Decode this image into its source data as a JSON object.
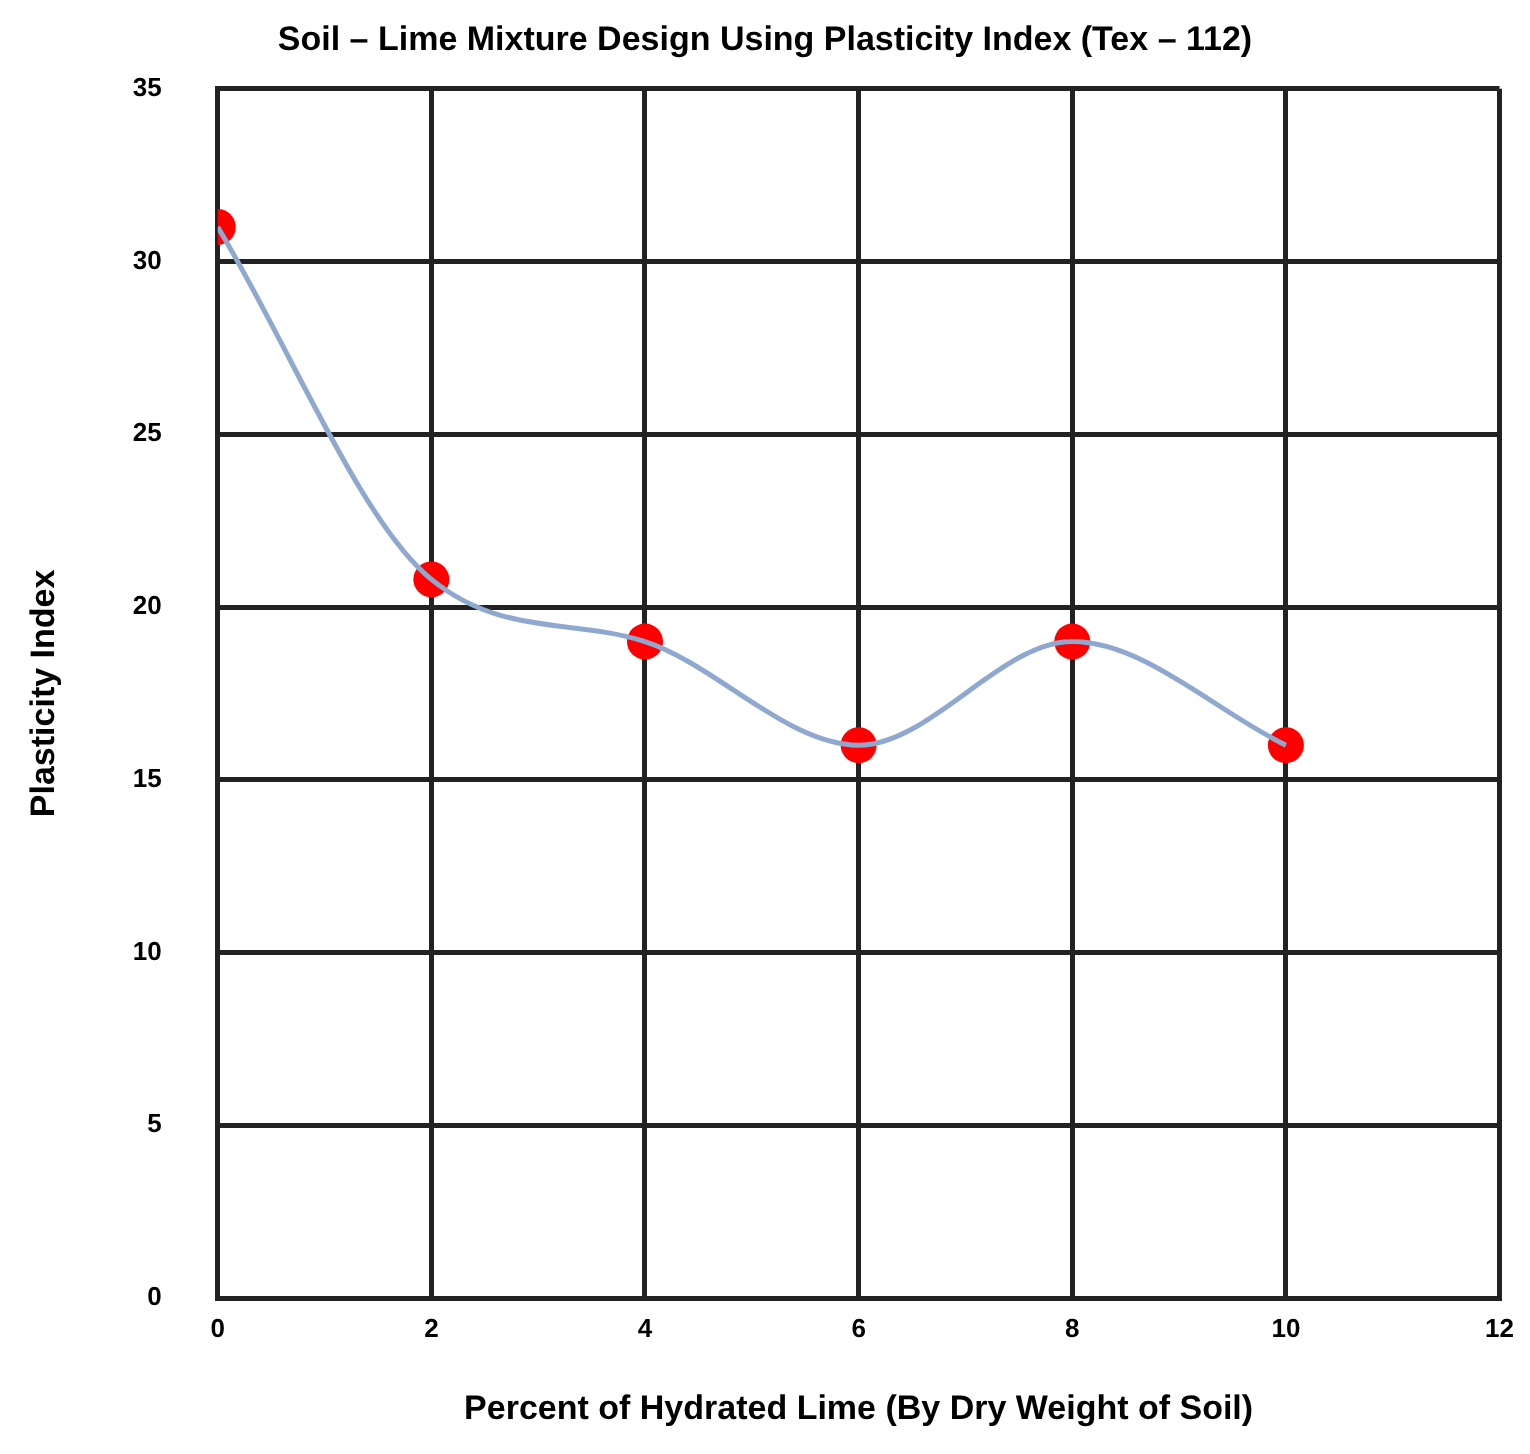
{
  "chart_data": {
    "type": "line",
    "title": "Soil – Lime Mixture Design Using Plasticity Index (Tex – 112)",
    "xlabel": "Percent of Hydrated Lime (By Dry Weight of Soil)",
    "ylabel": "Plasticity Index",
    "x": [
      0,
      2,
      4,
      6,
      8,
      10
    ],
    "series": [
      {
        "type": "line",
        "color": "#8fa8d0",
        "marker": "none",
        "values": [
          31,
          20.8,
          19,
          16,
          19,
          16
        ]
      },
      {
        "type": "scatter",
        "color": "#ff0000",
        "marker": "circle",
        "values": [
          31,
          20.8,
          19,
          16,
          19,
          16
        ]
      }
    ],
    "xlim": [
      0,
      12
    ],
    "xticks": [
      0,
      2,
      4,
      6,
      8,
      10,
      12
    ],
    "ylim": [
      0,
      35
    ],
    "yticks": [
      0,
      5,
      10,
      15,
      20,
      25,
      30,
      35
    ],
    "grid": true,
    "legend": false,
    "line_style": "solid"
  }
}
